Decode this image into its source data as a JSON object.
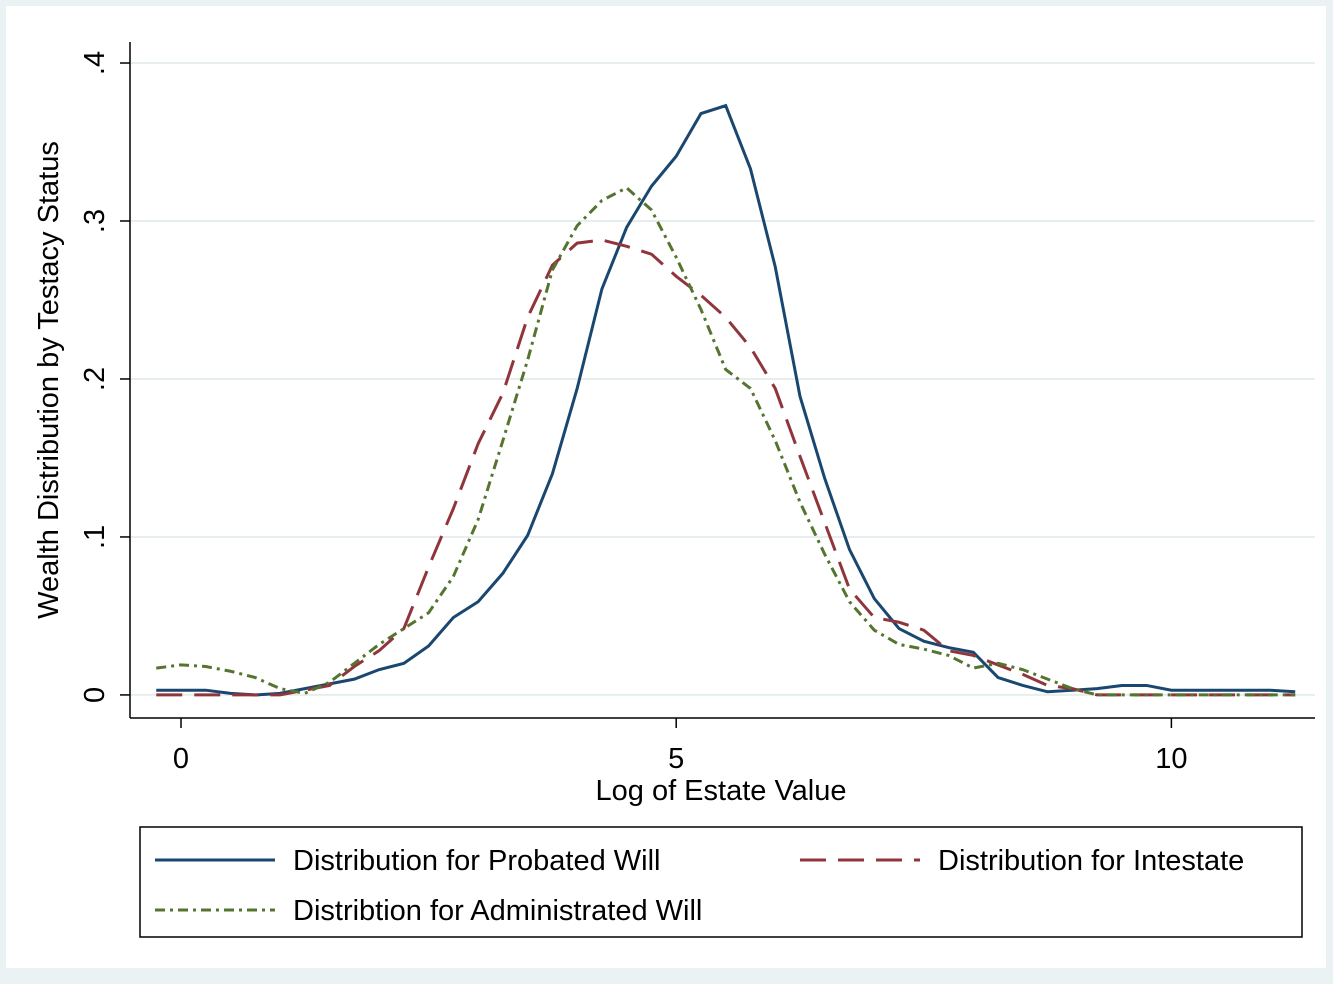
{
  "chart_data": {
    "type": "line",
    "y_label": "Wealth Distribution by Testacy Status",
    "x_label": "Log of Estate Value",
    "x": [
      -0.25,
      0,
      0.25,
      0.5,
      0.75,
      1,
      1.25,
      1.5,
      1.75,
      2,
      2.25,
      2.5,
      2.75,
      3,
      3.25,
      3.5,
      3.75,
      4,
      4.25,
      4.5,
      4.75,
      5,
      5.25,
      5.5,
      5.75,
      6,
      6.25,
      6.5,
      6.75,
      7,
      7.25,
      7.5,
      7.75,
      8,
      8.25,
      8.5,
      8.75,
      9,
      9.25,
      9.5,
      9.75,
      10,
      10.25,
      10.5,
      10.75,
      11,
      11.25
    ],
    "series": [
      {
        "name": "Distribution for Probated Will",
        "color": "#1a476f",
        "dash": "solid",
        "values": [
          0.003,
          0.003,
          0.003,
          0.001,
          0,
          0.001,
          0.004,
          0.007,
          0.01,
          0.016,
          0.02,
          0.031,
          0.049,
          0.059,
          0.077,
          0.101,
          0.14,
          0.194,
          0.257,
          0.296,
          0.322,
          0.341,
          0.368,
          0.373,
          0.333,
          0.271,
          0.189,
          0.137,
          0.092,
          0.061,
          0.042,
          0.034,
          0.03,
          0.027,
          0.011,
          0.006,
          0.002,
          0.003,
          0.004,
          0.006,
          0.006,
          0.003,
          0.003,
          0.003,
          0.003,
          0.003,
          0.002
        ]
      },
      {
        "name": "Distribution for Intestate",
        "color": "#90353b",
        "dash": "long-dash",
        "values": [
          0,
          0,
          0,
          0,
          0,
          0,
          0.003,
          0.006,
          0.018,
          0.028,
          0.042,
          0.081,
          0.118,
          0.159,
          0.191,
          0.239,
          0.272,
          0.286,
          0.288,
          0.284,
          0.279,
          0.265,
          0.253,
          0.239,
          0.22,
          0.194,
          0.151,
          0.109,
          0.067,
          0.049,
          0.046,
          0.041,
          0.028,
          0.025,
          0.019,
          0.013,
          0.006,
          0.004,
          0,
          0,
          0,
          0,
          0,
          0,
          0,
          0,
          0
        ]
      },
      {
        "name": "Distribtion for Administrated Will",
        "color": "#55752f",
        "dash": "dash-dot",
        "values": [
          0.017,
          0.019,
          0.018,
          0.015,
          0.011,
          0.004,
          0.001,
          0.008,
          0.02,
          0.032,
          0.042,
          0.052,
          0.075,
          0.111,
          0.161,
          0.212,
          0.269,
          0.297,
          0.313,
          0.321,
          0.307,
          0.277,
          0.244,
          0.206,
          0.194,
          0.161,
          0.122,
          0.089,
          0.059,
          0.041,
          0.032,
          0.029,
          0.025,
          0.017,
          0.02,
          0.016,
          0.01,
          0.004,
          0,
          0,
          0,
          0,
          0,
          0,
          0,
          0,
          0
        ]
      }
    ],
    "xlim": [
      -0.515,
      11.45
    ],
    "xticks": [
      0,
      5,
      10
    ],
    "ylim": [
      -0.0146,
      0.4133
    ],
    "yticks": [
      0,
      {
        "value": 0.1,
        "label": ".1"
      },
      {
        "value": 0.2,
        "label": ".2"
      },
      {
        "value": 0.3,
        "label": ".3"
      },
      {
        "value": 0.4,
        "label": ".4"
      }
    ],
    "grid": true,
    "legend": "bottom"
  }
}
